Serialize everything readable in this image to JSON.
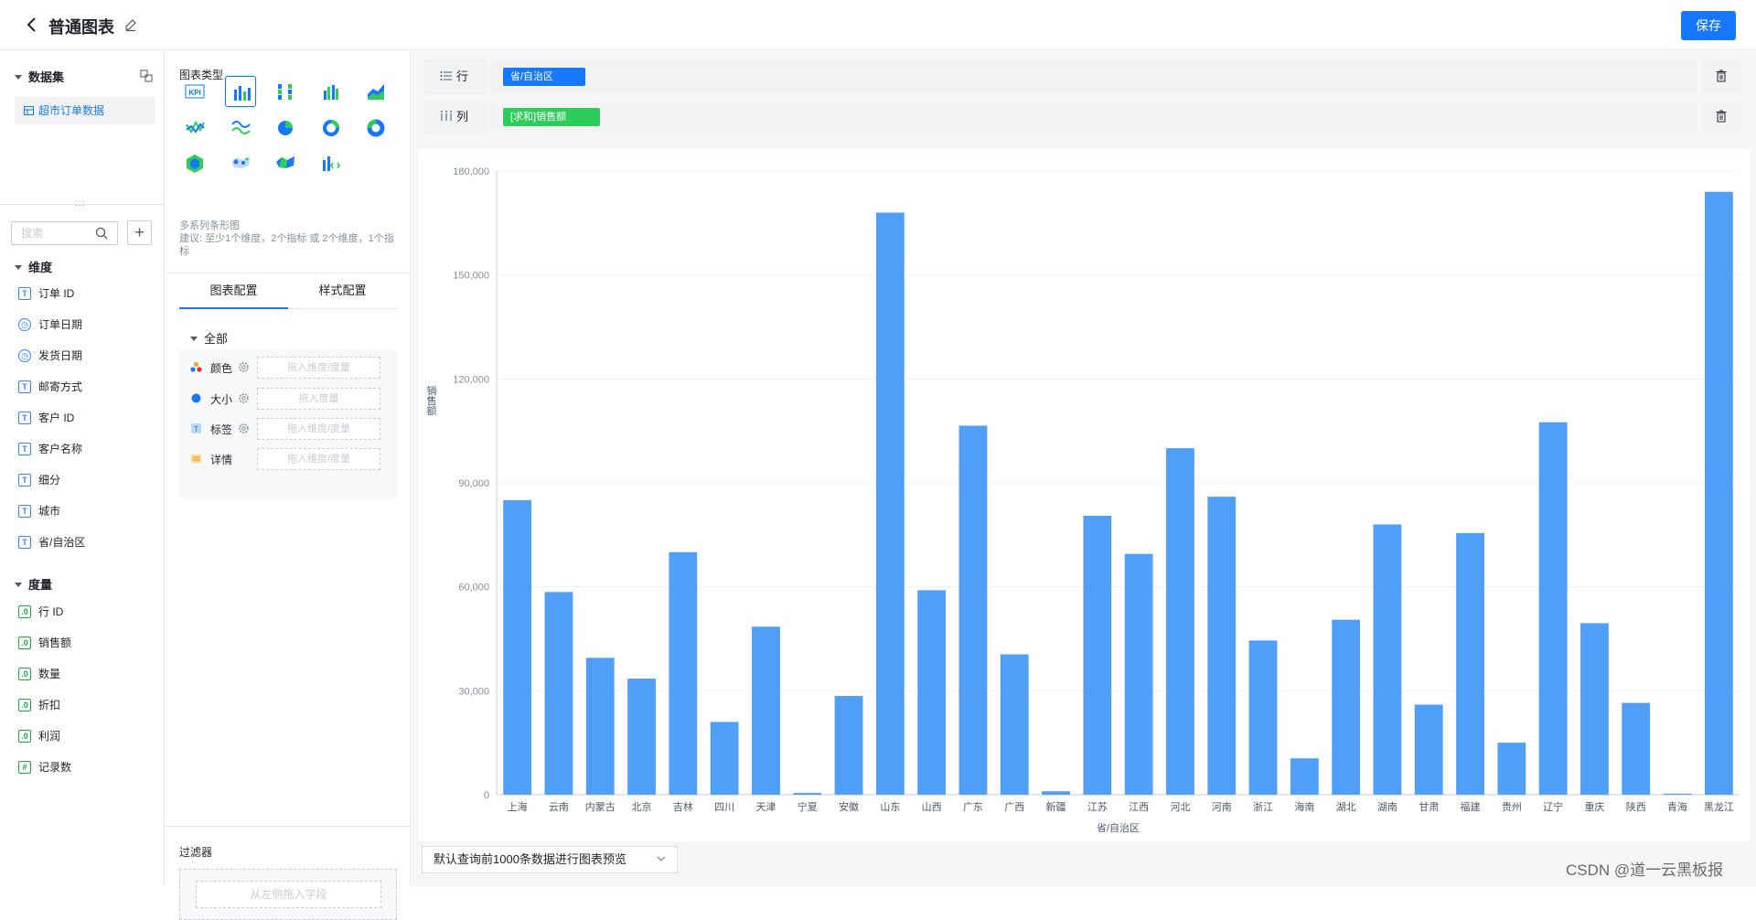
{
  "header": {
    "title": "普通图表",
    "save_label": "保存"
  },
  "sidebar": {
    "dataset_header": "数据集",
    "dataset_item": "超市订单数据",
    "search_placeholder": "搜索",
    "dim_header": "维度",
    "dimensions": [
      "订单 ID",
      "订单日期",
      "发货日期",
      "邮寄方式",
      "客户 ID",
      "客户名称",
      "细分",
      "城市",
      "省/自治区"
    ],
    "measure_header": "度量",
    "measures": [
      "行 ID",
      "销售额",
      "数量",
      "折扣",
      "利润",
      "记录数"
    ]
  },
  "config": {
    "chart_type_title": "图表类型",
    "hint_line1": "多系列条形图",
    "hint_line2": "建议: 至少1个维度，2个指标 或 2个维度，1个指标",
    "tab_chart": "图表配置",
    "tab_style": "样式配置",
    "all_label": "全部",
    "rows": [
      {
        "label": "颜色",
        "drop": "拖入维度/度量"
      },
      {
        "label": "大小",
        "drop": "拖入度量"
      },
      {
        "label": "标签",
        "drop": "拖入维度/度量"
      },
      {
        "label": "详情",
        "drop": "拖入维度/度量"
      }
    ],
    "filter_title": "过滤器",
    "filter_drop": "从左侧拖入字段"
  },
  "shelves": {
    "row_label": "行",
    "row_chip": "省/自治区",
    "col_label": "列",
    "col_chip": "[求和]销售额"
  },
  "footer": {
    "preview_select": "默认查询前1000条数据进行图表预览"
  },
  "watermark": "CSDN @道一云黑板报",
  "colors": {
    "accent": "#1677ff",
    "bar": "#4f9ef8",
    "measure_chip": "#2ecc5a"
  },
  "chart_data": {
    "type": "bar",
    "categories": [
      "上海",
      "云南",
      "内蒙古",
      "北京",
      "吉林",
      "四川",
      "天津",
      "宁夏",
      "安徽",
      "山东",
      "山西",
      "广东",
      "广西",
      "新疆",
      "江苏",
      "江西",
      "河北",
      "河南",
      "浙江",
      "海南",
      "湖北",
      "湖南",
      "甘肃",
      "福建",
      "贵州",
      "辽宁",
      "重庆",
      "陕西",
      "青海",
      "黑龙江"
    ],
    "values": [
      85000,
      58500,
      39500,
      33500,
      70000,
      21000,
      48500,
      500,
      28500,
      168000,
      59000,
      106500,
      40500,
      1000,
      80500,
      69500,
      100000,
      86000,
      44500,
      10500,
      50500,
      78000,
      26000,
      75500,
      15000,
      107500,
      49500,
      26500,
      300,
      174000
    ],
    "xlabel": "省/自治区",
    "ylabel": "销售额",
    "ylim": [
      0,
      180000
    ],
    "yticks": [
      "0",
      "30,000",
      "60,000",
      "90,000",
      "120,000",
      "150,000",
      "180,000"
    ],
    "grid": true
  }
}
